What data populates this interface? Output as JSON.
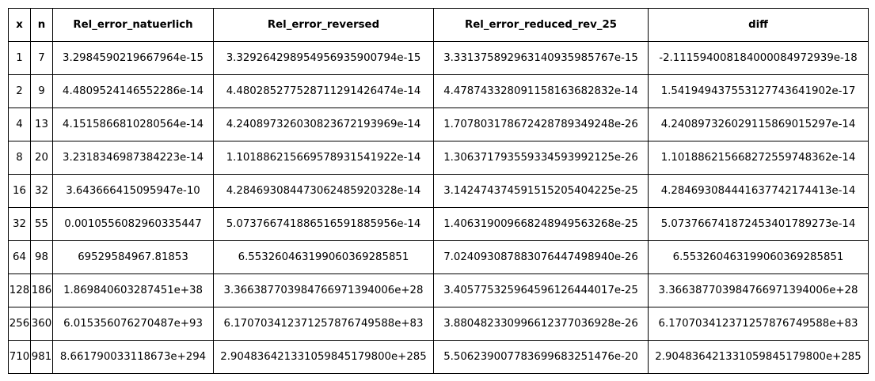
{
  "table": {
    "headers": [
      "x",
      "n",
      "Rel_error_natuerlich",
      "Rel_error_reversed",
      "Rel_error_reduced_rev_25",
      "diff"
    ],
    "rows": [
      [
        "1",
        "7",
        "3.2984590219667964e-15",
        "3.329264298954956935900794e-15",
        "3.331375892963140935985767e-15",
        "-2.111594008184000084972939e-18"
      ],
      [
        "2",
        "9",
        "4.4809524146552286e-14",
        "4.480285277528711291426474e-14",
        "4.478743328091158163682832e-14",
        "1.541949437553127743641902e-17"
      ],
      [
        "4",
        "13",
        "4.1515866810280564e-14",
        "4.240897326030823672193969e-14",
        "1.707803178672428789349248e-26",
        "4.240897326029115869015297e-14"
      ],
      [
        "8",
        "20",
        "3.2318346987384223e-14",
        "1.101886215669578931541922e-14",
        "1.306371793559334593992125e-26",
        "1.101886215668272559748362e-14"
      ],
      [
        "16",
        "32",
        "3.643666415095947e-10",
        "4.284693084473062485920328e-14",
        "3.142474374591515205404225e-25",
        "4.284693084441637742174413e-14"
      ],
      [
        "32",
        "55",
        "0.0010556082960335447",
        "5.073766741886516591885956e-14",
        "1.406319009668248949563268e-25",
        "5.073766741872453401789273e-14"
      ],
      [
        "64",
        "98",
        "69529584967.81853",
        "6.553260463199060369285851",
        "7.024093087883076447498940e-26",
        "6.553260463199060369285851"
      ],
      [
        "128",
        "186",
        "1.869840603287451e+38",
        "3.366387703984766971394006e+28",
        "3.405775325964596126444017e-25",
        "3.366387703984766971394006e+28"
      ],
      [
        "256",
        "360",
        "6.015356076270487e+93",
        "6.170703412371257876749588e+83",
        "3.880482330996612377036928e-26",
        "6.170703412371257876749588e+83"
      ],
      [
        "710",
        "981",
        "8.661790033118673e+294",
        "2.904836421331059845179800e+285",
        "5.506239007783699683251476e-20",
        "2.904836421331059845179800e+285"
      ]
    ]
  }
}
